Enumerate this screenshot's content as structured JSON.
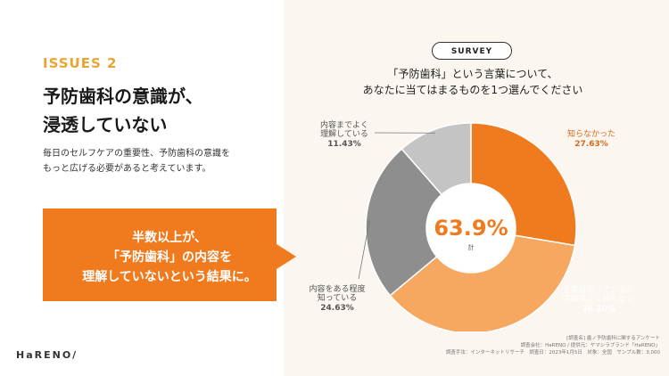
{
  "left": {
    "issue_label": "ISSUES 2",
    "headline_line1": "予防歯科の意識が、",
    "headline_line2": "浸透していない",
    "body_line1": "毎日のセルフケアの重要性、予防歯科の意識を",
    "body_line2": "もっと広げる必要があると考えています。",
    "callout_line1": "半数以上が、",
    "callout_line2": "「予防歯科」の内容を",
    "callout_line3": "理解していないという結果に。",
    "logo": "HaRENO/"
  },
  "survey": {
    "badge": "SURVEY",
    "question_line1": "「予防歯科」という言葉について、",
    "question_line2": "あなたに当てはまるものを1つ選んでください"
  },
  "chart_data": {
    "type": "pie",
    "center_value": "63.9%",
    "center_sub": "計",
    "slices": [
      {
        "label_lines": [
          "知らなかった"
        ],
        "pct_text": "27.63%",
        "value": 27.63,
        "color": "#f07a1e"
      },
      {
        "label_lines": [
          "言葉は知っているが",
          "内容はよく知らない"
        ],
        "pct_text": "36.30%",
        "value": 36.3,
        "color": "#f6a860"
      },
      {
        "label_lines": [
          "内容をある程度",
          "知っている"
        ],
        "pct_text": "24.63%",
        "value": 24.63,
        "color": "#8e8e8e"
      },
      {
        "label_lines": [
          "内容までよく",
          "理解している"
        ],
        "pct_text": "11.43%",
        "value": 11.43,
        "color": "#c4c4c4"
      }
    ]
  },
  "footnotes": {
    "line1": "[調査名] 歯ノ予防歯科に関するアンケート",
    "line2": "調査会社：HaRENO / 提供元：ヤマシラブランド「HaRENO」",
    "line3": "調査手法：インターネットリサーチ　調査日：2023年1月5日　対象：全国　サンプル数：3,000"
  }
}
